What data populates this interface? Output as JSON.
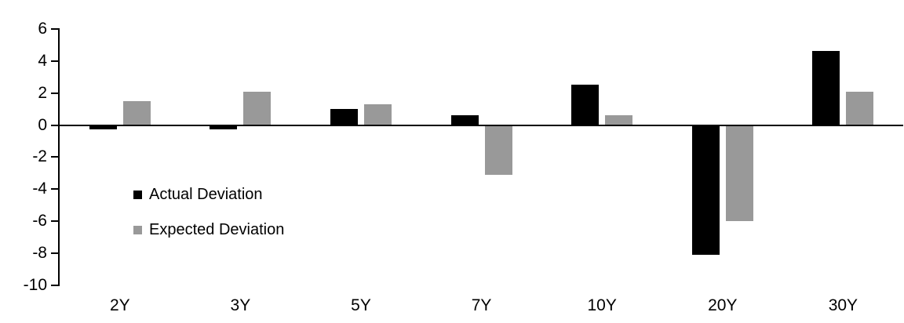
{
  "chart_data": {
    "type": "bar",
    "title": "",
    "categories": [
      "2Y",
      "3Y",
      "5Y",
      "7Y",
      "10Y",
      "20Y",
      "30Y"
    ],
    "series": [
      {
        "name": "Actual Deviation",
        "color": "#000000",
        "values": [
          -0.25,
          -0.25,
          1.0,
          0.6,
          2.5,
          -8.1,
          4.6
        ]
      },
      {
        "name": "Expected Deviation",
        "color": "#999999",
        "values": [
          1.5,
          2.1,
          1.3,
          -3.1,
          0.6,
          -6.0,
          2.1
        ]
      }
    ],
    "xlabel": "",
    "ylabel": "",
    "ylim": [
      -10,
      6
    ],
    "yticks": [
      6,
      4,
      2,
      0,
      -2,
      -4,
      -6,
      -8,
      -10
    ],
    "grid": false,
    "legend_position": "inside-left",
    "axis_color": "#000000",
    "background_color": "#ffffff"
  }
}
